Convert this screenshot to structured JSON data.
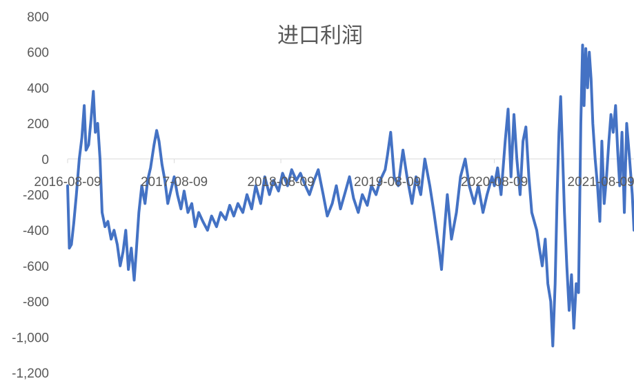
{
  "chart_data": {
    "type": "line",
    "title": "进口利润",
    "xlabel": "",
    "ylabel": "",
    "ylim": [
      -1200,
      800
    ],
    "y_ticks": [
      800,
      600,
      400,
      200,
      0,
      -200,
      -400,
      -600,
      -800,
      -1000,
      -1200
    ],
    "y_tick_labels": [
      "800",
      "600",
      "400",
      "200",
      "0",
      "-200",
      "-400",
      "-600",
      "-800",
      "-1,000",
      "-1,200"
    ],
    "x_tick_labels": [
      "2016-08-09",
      "2017-08-09",
      "2018-08-09",
      "2019-08-09",
      "2020-08-09",
      "2021-08-09"
    ],
    "x_range": [
      "2016-08-09",
      "2021-11-30"
    ],
    "grid": false,
    "legend": "none",
    "color": "#4472C4",
    "series": [
      {
        "name": "",
        "points": [
          [
            "2016-08-09",
            -150
          ],
          [
            "2016-08-15",
            -500
          ],
          [
            "2016-08-22",
            -480
          ],
          [
            "2016-08-30",
            -360
          ],
          [
            "2016-09-08",
            -200
          ],
          [
            "2016-09-18",
            0
          ],
          [
            "2016-09-27",
            120
          ],
          [
            "2016-10-05",
            300
          ],
          [
            "2016-10-11",
            50
          ],
          [
            "2016-10-20",
            80
          ],
          [
            "2016-10-28",
            220
          ],
          [
            "2016-11-05",
            380
          ],
          [
            "2016-11-12",
            150
          ],
          [
            "2016-11-20",
            200
          ],
          [
            "2016-11-28",
            0
          ],
          [
            "2016-12-05",
            -300
          ],
          [
            "2016-12-15",
            -380
          ],
          [
            "2016-12-25",
            -350
          ],
          [
            "2017-01-05",
            -450
          ],
          [
            "2017-01-15",
            -400
          ],
          [
            "2017-01-26",
            -480
          ],
          [
            "2017-02-05",
            -600
          ],
          [
            "2017-02-15",
            -520
          ],
          [
            "2017-02-24",
            -400
          ],
          [
            "2017-03-05",
            -620
          ],
          [
            "2017-03-15",
            -500
          ],
          [
            "2017-03-25",
            -680
          ],
          [
            "2017-04-01",
            -520
          ],
          [
            "2017-04-10",
            -300
          ],
          [
            "2017-04-20",
            -150
          ],
          [
            "2017-05-01",
            -250
          ],
          [
            "2017-05-10",
            -120
          ],
          [
            "2017-05-20",
            -50
          ],
          [
            "2017-06-01",
            80
          ],
          [
            "2017-06-10",
            160
          ],
          [
            "2017-06-18",
            100
          ],
          [
            "2017-06-28",
            -30
          ],
          [
            "2017-07-08",
            -120
          ],
          [
            "2017-07-18",
            -250
          ],
          [
            "2017-07-28",
            -180
          ],
          [
            "2017-08-09",
            -100
          ],
          [
            "2017-08-20",
            -200
          ],
          [
            "2017-09-01",
            -280
          ],
          [
            "2017-09-12",
            -180
          ],
          [
            "2017-09-25",
            -300
          ],
          [
            "2017-10-08",
            -250
          ],
          [
            "2017-10-20",
            -380
          ],
          [
            "2017-11-01",
            -300
          ],
          [
            "2017-11-15",
            -350
          ],
          [
            "2017-12-01",
            -400
          ],
          [
            "2017-12-15",
            -320
          ],
          [
            "2018-01-01",
            -380
          ],
          [
            "2018-01-15",
            -300
          ],
          [
            "2018-02-01",
            -340
          ],
          [
            "2018-02-15",
            -260
          ],
          [
            "2018-03-01",
            -320
          ],
          [
            "2018-03-15",
            -250
          ],
          [
            "2018-04-01",
            -300
          ],
          [
            "2018-04-15",
            -200
          ],
          [
            "2018-05-01",
            -280
          ],
          [
            "2018-05-15",
            -150
          ],
          [
            "2018-06-01",
            -250
          ],
          [
            "2018-06-15",
            -100
          ],
          [
            "2018-07-01",
            -200
          ],
          [
            "2018-07-15",
            -120
          ],
          [
            "2018-08-01",
            -180
          ],
          [
            "2018-08-15",
            -80
          ],
          [
            "2018-09-01",
            -150
          ],
          [
            "2018-09-15",
            -60
          ],
          [
            "2018-10-01",
            -120
          ],
          [
            "2018-10-15",
            -80
          ],
          [
            "2018-11-01",
            -150
          ],
          [
            "2018-11-15",
            -200
          ],
          [
            "2018-12-01",
            -120
          ],
          [
            "2018-12-15",
            -60
          ],
          [
            "2019-01-01",
            -200
          ],
          [
            "2019-01-15",
            -320
          ],
          [
            "2019-02-01",
            -250
          ],
          [
            "2019-02-15",
            -150
          ],
          [
            "2019-03-01",
            -280
          ],
          [
            "2019-03-15",
            -200
          ],
          [
            "2019-04-01",
            -100
          ],
          [
            "2019-04-15",
            -220
          ],
          [
            "2019-05-01",
            -300
          ],
          [
            "2019-05-15",
            -200
          ],
          [
            "2019-06-01",
            -260
          ],
          [
            "2019-06-15",
            -150
          ],
          [
            "2019-07-01",
            -200
          ],
          [
            "2019-07-15",
            -120
          ],
          [
            "2019-08-01",
            -60
          ],
          [
            "2019-08-09",
            20
          ],
          [
            "2019-08-20",
            150
          ],
          [
            "2019-09-01",
            -100
          ],
          [
            "2019-09-15",
            -150
          ],
          [
            "2019-10-01",
            50
          ],
          [
            "2019-10-15",
            -100
          ],
          [
            "2019-11-01",
            -250
          ],
          [
            "2019-11-15",
            -100
          ],
          [
            "2019-12-01",
            -200
          ],
          [
            "2019-12-15",
            0
          ],
          [
            "2020-01-01",
            -150
          ],
          [
            "2020-01-15",
            -300
          ],
          [
            "2020-02-01",
            -500
          ],
          [
            "2020-02-10",
            -620
          ],
          [
            "2020-02-20",
            -400
          ],
          [
            "2020-03-01",
            -200
          ],
          [
            "2020-03-15",
            -450
          ],
          [
            "2020-04-01",
            -300
          ],
          [
            "2020-04-15",
            -100
          ],
          [
            "2020-05-01",
            0
          ],
          [
            "2020-05-15",
            -150
          ],
          [
            "2020-06-01",
            -250
          ],
          [
            "2020-06-15",
            -150
          ],
          [
            "2020-07-01",
            -300
          ],
          [
            "2020-07-15",
            -200
          ],
          [
            "2020-08-01",
            -100
          ],
          [
            "2020-08-09",
            -150
          ],
          [
            "2020-08-20",
            -50
          ],
          [
            "2020-09-01",
            -200
          ],
          [
            "2020-09-15",
            100
          ],
          [
            "2020-09-25",
            280
          ],
          [
            "2020-10-05",
            -100
          ],
          [
            "2020-10-15",
            250
          ],
          [
            "2020-10-25",
            0
          ],
          [
            "2020-11-05",
            -200
          ],
          [
            "2020-11-15",
            100
          ],
          [
            "2020-11-25",
            180
          ],
          [
            "2020-12-05",
            -100
          ],
          [
            "2020-12-15",
            -300
          ],
          [
            "2021-01-01",
            -400
          ],
          [
            "2021-01-10",
            -500
          ],
          [
            "2021-01-20",
            -600
          ],
          [
            "2021-01-30",
            -450
          ],
          [
            "2021-02-08",
            -700
          ],
          [
            "2021-02-18",
            -800
          ],
          [
            "2021-02-25",
            -1050
          ],
          [
            "2021-03-05",
            -700
          ],
          [
            "2021-03-12",
            -200
          ],
          [
            "2021-03-18",
            150
          ],
          [
            "2021-03-24",
            350
          ],
          [
            "2021-03-30",
            50
          ],
          [
            "2021-04-06",
            -300
          ],
          [
            "2021-04-14",
            -600
          ],
          [
            "2021-04-22",
            -850
          ],
          [
            "2021-04-30",
            -650
          ],
          [
            "2021-05-08",
            -950
          ],
          [
            "2021-05-16",
            -700
          ],
          [
            "2021-05-24",
            -750
          ],
          [
            "2021-06-01",
            200
          ],
          [
            "2021-06-07",
            640
          ],
          [
            "2021-06-12",
            300
          ],
          [
            "2021-06-18",
            620
          ],
          [
            "2021-06-24",
            400
          ],
          [
            "2021-06-30",
            600
          ],
          [
            "2021-07-06",
            450
          ],
          [
            "2021-07-12",
            200
          ],
          [
            "2021-07-20",
            0
          ],
          [
            "2021-07-28",
            -150
          ],
          [
            "2021-08-05",
            -350
          ],
          [
            "2021-08-12",
            100
          ],
          [
            "2021-08-20",
            -250
          ],
          [
            "2021-08-28",
            -100
          ],
          [
            "2021-09-05",
            100
          ],
          [
            "2021-09-12",
            250
          ],
          [
            "2021-09-20",
            150
          ],
          [
            "2021-09-28",
            300
          ],
          [
            "2021-10-05",
            50
          ],
          [
            "2021-10-12",
            -150
          ],
          [
            "2021-10-20",
            150
          ],
          [
            "2021-10-28",
            -300
          ],
          [
            "2021-11-05",
            200
          ],
          [
            "2021-11-15",
            0
          ],
          [
            "2021-11-24",
            -200
          ],
          [
            "2021-11-30",
            -400
          ]
        ]
      }
    ]
  }
}
